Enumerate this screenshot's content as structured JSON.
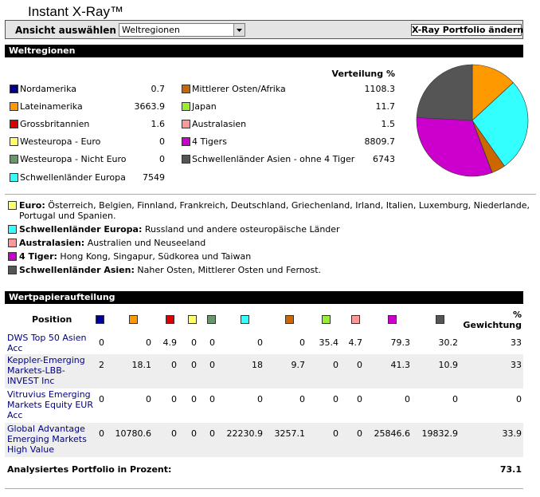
{
  "header": {
    "title": "Instant X-Ray™",
    "view_label": "Ansicht auswählen",
    "view_select": "Weltregionen",
    "button": "X-Ray Portfolio ändern"
  },
  "regions": {
    "title": "Weltregionen",
    "distribution_header": "Verteilung %",
    "items": [
      {
        "name": "Nordamerika",
        "value": 0.7,
        "color": "#000099"
      },
      {
        "name": "Lateinamerika",
        "value": 3663.9,
        "color": "#ff9900"
      },
      {
        "name": "Grossbritannien",
        "value": 1.6,
        "color": "#dd0000"
      },
      {
        "name": "Westeuropa - Euro",
        "value": 0,
        "color": "#ffff66"
      },
      {
        "name": "Westeuropa - Nicht Euro",
        "value": 0,
        "color": "#669966"
      },
      {
        "name": "Schwellenländer Europa",
        "value": 7549,
        "color": "#33ffff"
      },
      {
        "name": "Mittlerer Osten/Afrika",
        "value": 1108.3,
        "color": "#cc6600"
      },
      {
        "name": "Japan",
        "value": 11.7,
        "color": "#99ee33"
      },
      {
        "name": "Australasien",
        "value": 1.5,
        "color": "#ff9999"
      },
      {
        "name": "4 Tigers",
        "value": 8809.7,
        "color": "#cc00cc"
      },
      {
        "name": "Schwellenländer Asien - ohne 4 Tiger",
        "value": 6743,
        "color": "#555555"
      }
    ]
  },
  "notes": [
    {
      "color": "#ffff66",
      "term": "Euro:",
      "text": "Österreich, Belgien, Finnland, Frankreich, Deutschland, Griechenland, Irland, Italien, Luxemburg, Niederlande, Portugal und Spanien."
    },
    {
      "color": "#33ffff",
      "term": "Schwellenländer Europa:",
      "text": "Russland und andere osteuropäische Länder"
    },
    {
      "color": "#ff9999",
      "term": "Australasien:",
      "text": "Australien und Neuseeland"
    },
    {
      "color": "#cc00cc",
      "term": "4 Tiger:",
      "text": "Hong Kong, Singapur, Südkorea und Taiwan"
    },
    {
      "color": "#555555",
      "term": "Schwellenländer Asien:",
      "text": "Naher Osten, Mittlerer Osten und Fernost."
    }
  ],
  "holdings": {
    "title": "Wertpapieraufteilung",
    "position_header": "Position",
    "weight_header": [
      "%",
      "Gewichtung"
    ],
    "rows": [
      {
        "name": "DWS Top 50 Asien Acc",
        "values": [
          0,
          0,
          4.9,
          0,
          0,
          0,
          0,
          35.4,
          4.7,
          79.3,
          30.2
        ],
        "weight": 33
      },
      {
        "name": "Keppler-Emerging Markets-LBB-INVEST Inc",
        "values": [
          2,
          18.1,
          0,
          0,
          0,
          18,
          9.7,
          0,
          0,
          41.3,
          10.9
        ],
        "weight": 33
      },
      {
        "name": "Vitruvius Emerging Markets Equity EUR Acc",
        "values": [
          0,
          0,
          0,
          0,
          0,
          0,
          0,
          0,
          0,
          0,
          0
        ],
        "weight": 0
      },
      {
        "name": "Global Advantage Emerging Markets High Value",
        "values": [
          0,
          10780.6,
          0,
          0,
          0,
          22230.9,
          3257.1,
          0,
          0,
          25846.6,
          19832.9
        ],
        "weight": 33.9
      }
    ],
    "footer_label": "Analysiertes Portfolio in Prozent:",
    "footer_value": 73.1
  }
}
